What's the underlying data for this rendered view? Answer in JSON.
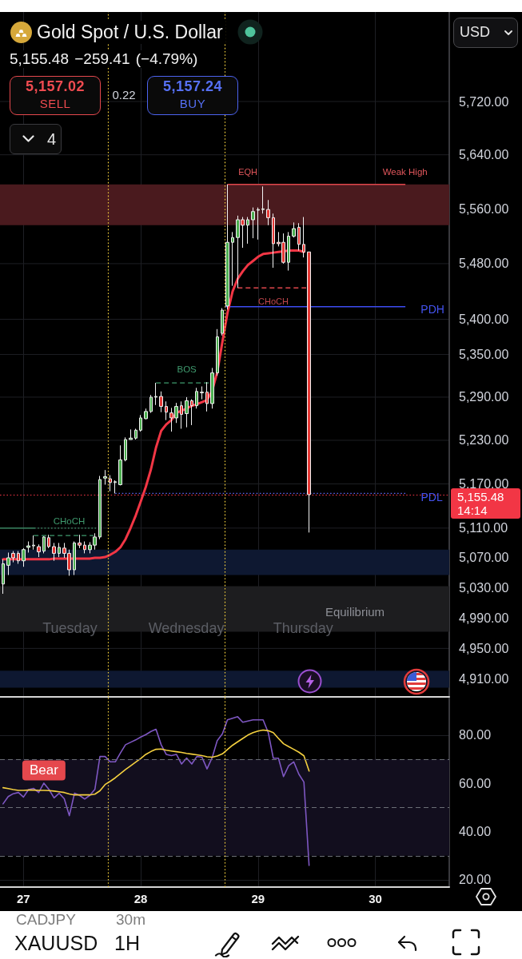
{
  "chart_data": [
    {
      "type": "candlestick",
      "title": "Gold Spot / U.S. Dollar",
      "subtitle": "5,155.48 −259.41 (−4.79%)",
      "x": [
        26.826,
        26.87,
        26.913,
        26.957,
        27,
        27.043,
        27.087,
        27.13,
        27.174,
        27.217,
        27.261,
        27.304,
        27.348,
        27.391,
        27.435,
        27.478,
        27.522,
        27.565,
        27.609,
        27.652,
        27.696,
        27.739,
        27.783,
        27.826,
        27.87,
        27.913,
        27.957,
        28,
        28.043,
        28.087,
        28.13,
        28.174,
        28.217,
        28.261,
        28.304,
        28.348,
        28.391,
        28.435,
        28.478,
        28.522,
        28.565,
        28.609,
        28.652,
        28.696,
        28.739,
        28.783,
        28.826,
        28.87,
        28.913,
        28.957,
        29,
        29.043,
        29.087,
        29.13,
        29.174,
        29.217,
        29.261,
        29.304,
        29.348,
        29.391,
        29.435
      ],
      "ohlc": [
        [
          5035,
          5068,
          5022,
          5062
        ],
        [
          5060,
          5077,
          5047,
          5070
        ],
        [
          5076,
          5079,
          5064,
          5070
        ],
        [
          5076,
          5079,
          5062,
          5066
        ],
        [
          5066,
          5083,
          5058,
          5081
        ],
        [
          5084,
          5092,
          5077,
          5086
        ],
        [
          5086,
          5100,
          5081,
          5087
        ],
        [
          5085,
          5088,
          5071,
          5078
        ],
        [
          5079,
          5099,
          5076,
          5098
        ],
        [
          5097,
          5101,
          5083,
          5085
        ],
        [
          5085,
          5090,
          5066,
          5076
        ],
        [
          5076,
          5090,
          5071,
          5084
        ],
        [
          5083,
          5090,
          5070,
          5076
        ],
        [
          5076,
          5081,
          5046,
          5054
        ],
        [
          5054,
          5092,
          5047,
          5090
        ],
        [
          5090,
          5101,
          5083,
          5087
        ],
        [
          5087,
          5092,
          5076,
          5081
        ],
        [
          5081,
          5091,
          5076,
          5087
        ],
        [
          5087,
          5103,
          5081,
          5098
        ],
        [
          5098,
          5181,
          5095,
          5176
        ],
        [
          5178,
          5189,
          5169,
          5180
        ],
        [
          5177,
          5182,
          5160,
          5172
        ],
        [
          5172,
          5175,
          5157,
          5173
        ],
        [
          5169,
          5223,
          5168,
          5203
        ],
        [
          5203,
          5234,
          5201,
          5231
        ],
        [
          5231,
          5245,
          5231,
          5233
        ],
        [
          5233,
          5246,
          5231,
          5244
        ],
        [
          5244,
          5265,
          5242,
          5261
        ],
        [
          5260,
          5274,
          5259,
          5270
        ],
        [
          5270,
          5293,
          5268,
          5290
        ],
        [
          5290,
          5310,
          5279,
          5291
        ],
        [
          5291,
          5298,
          5269,
          5277
        ],
        [
          5277,
          5284,
          5258,
          5269
        ],
        [
          5268,
          5275,
          5242,
          5261
        ],
        [
          5261,
          5282,
          5254,
          5277
        ],
        [
          5278,
          5284,
          5246,
          5266
        ],
        [
          5267,
          5290,
          5248,
          5285
        ],
        [
          5285,
          5287,
          5251,
          5278
        ],
        [
          5278,
          5303,
          5274,
          5298
        ],
        [
          5296,
          5305,
          5287,
          5297
        ],
        [
          5297,
          5311,
          5270,
          5281
        ],
        [
          5281,
          5331,
          5274,
          5324
        ],
        [
          5324,
          5386,
          5320,
          5375
        ],
        [
          5380,
          5416,
          5377,
          5413
        ],
        [
          5419,
          5596,
          5414,
          5511
        ],
        [
          5511,
          5526,
          5448,
          5518
        ],
        [
          5518,
          5550,
          5445,
          5544
        ],
        [
          5544,
          5548,
          5503,
          5536
        ],
        [
          5536,
          5548,
          5509,
          5544
        ],
        [
          5544,
          5562,
          5517,
          5556
        ],
        [
          5558,
          5562,
          5515,
          5559
        ],
        [
          5559,
          5593,
          5553,
          5560
        ],
        [
          5559,
          5573,
          5536,
          5547
        ],
        [
          5547,
          5553,
          5474,
          5509
        ],
        [
          5511,
          5526,
          5505,
          5509
        ],
        [
          5511,
          5524,
          5480,
          5482
        ],
        [
          5482,
          5526,
          5470,
          5520
        ],
        [
          5520,
          5540,
          5518,
          5531
        ],
        [
          5533,
          5539,
          5499,
          5508
        ],
        [
          5508,
          5548,
          5489,
          5497
        ],
        [
          5497,
          5497,
          5104,
          5155.48
        ]
      ],
      "colors": [
        "#4caf50",
        "#4caf50",
        "#e53935",
        "#e53935",
        "#4caf50",
        "#4caf50",
        "#4caf50",
        "#e53935",
        "#4caf50",
        "#e53935",
        "#e53935",
        "#4caf50",
        "#e53935",
        "#e53935",
        "#4caf50",
        "#e53935",
        "#e53935",
        "#4caf50",
        "#4caf50",
        "#4caf50",
        "#4caf50",
        "#e53935",
        "#4caf50",
        "#4caf50",
        "#4caf50",
        "#4caf50",
        "#4caf50",
        "#4caf50",
        "#4caf50",
        "#4caf50",
        "#4caf50",
        "#e53935",
        "#e53935",
        "#e53935",
        "#4caf50",
        "#e53935",
        "#4caf50",
        "#e53935",
        "#4caf50",
        "#4caf50",
        "#e53935",
        "#4caf50",
        "#4caf50",
        "#4caf50",
        "#4caf50",
        "#4caf50",
        "#4caf50",
        "#e53935",
        "#4caf50",
        "#4caf50",
        "#4caf50",
        "#4caf50",
        "#e53935",
        "#e53935",
        "#e53935",
        "#e53935",
        "#4caf50",
        "#4caf50",
        "#e53935",
        "#e53935",
        "#e53935"
      ],
      "series": [
        {
          "type": "line",
          "color": "#f23645",
          "line_style": "solid",
          "values": [
            5068,
            5068,
            5068,
            5068,
            5068,
            5068,
            5068,
            5068,
            5068,
            5068,
            5069,
            5069,
            5069,
            5069,
            5069,
            5069,
            5069,
            5069,
            5070,
            5070,
            5071,
            5074,
            5078,
            5084,
            5095,
            5110,
            5127,
            5146,
            5166,
            5190,
            5220,
            5243,
            5252,
            5258,
            5268,
            5271,
            5274,
            5278,
            5280,
            5283,
            5286,
            5299,
            5325,
            5368,
            5409,
            5440,
            5458,
            5469,
            5478,
            5484,
            5490,
            5494,
            5495,
            5496,
            5497,
            5498,
            5499,
            5499,
            5499,
            5497,
            null
          ]
        },
        {
          "type": "line",
          "x": [
            28.739,
            30.256
          ],
          "values": [
            5596,
            5596
          ],
          "color": "#e0474c",
          "line_style": "solid"
        },
        {
          "type": "line",
          "x": [
            28.72,
            30.256
          ],
          "values": [
            5418,
            5418
          ],
          "color": "#3d4cf2",
          "line_style": "solid"
        },
        {
          "type": "line",
          "x": [
            27.783,
            30.256
          ],
          "values": [
            5157,
            5157
          ],
          "color": "#5b63f0",
          "line_style": "dotted"
        },
        {
          "type": "line",
          "x": [
            28.826,
            29.41
          ],
          "values": [
            5445,
            5445
          ],
          "color": "#e0474c",
          "line_style": "dashed"
        },
        {
          "type": "line",
          "x": [
            28.13,
            28.593
          ],
          "values": [
            5310,
            5310
          ],
          "color": "#3f9a6e",
          "line_style": "dashed"
        },
        {
          "type": "line",
          "x": [
            26.8,
            27.093
          ],
          "values": [
            5110,
            5110
          ],
          "color": "#3f9a6e",
          "line_style": "solid"
        },
        {
          "type": "line",
          "x": [
            27.093,
            27.618
          ],
          "values": [
            5110,
            5110
          ],
          "color": "#3f9a6e",
          "line_style": "dotted"
        },
        {
          "type": "line",
          "x": [
            27.087,
            27.598
          ],
          "values": [
            5100,
            5100
          ],
          "color": "#3f9a6e",
          "line_style": "dashed"
        }
      ],
      "xlim": [
        26.8,
        30.63
      ],
      "xticks": [
        27,
        28,
        29,
        30
      ],
      "ylim": [
        4887,
        5857
      ],
      "yticks": [
        {
          "value": 5720,
          "label": "5,720.00"
        },
        {
          "value": 5640,
          "label": "5,640.00"
        },
        {
          "value": 5560,
          "label": "5,560.00"
        },
        {
          "value": 5480,
          "label": "5,480.00"
        },
        {
          "value": 5400,
          "label": "5,400.00"
        },
        {
          "value": 5350,
          "label": "5,350.00"
        },
        {
          "value": 5290,
          "label": "5,290.00"
        },
        {
          "value": 5230,
          "label": "5,230.00"
        },
        {
          "value": 5170,
          "label": "5,170.00"
        },
        {
          "value": 5110,
          "label": "5,110.00"
        },
        {
          "value": 5070,
          "label": "5,070.00"
        },
        {
          "value": 5030,
          "label": "5,030.00"
        },
        {
          "value": 4990,
          "label": "4,990.00"
        },
        {
          "value": 4950,
          "label": "4,950.00"
        },
        {
          "value": 4910,
          "label": "4,910.00"
        }
      ],
      "log": true,
      "grid": true,
      "tick_labels": "y",
      "marker": "none",
      "ref_lines": [
        {
          "axis": "y",
          "value": 5155.48,
          "label": "5,155.48\n14:14",
          "color": "#f23645",
          "line_style": "dotted"
        },
        {
          "axis": "x",
          "value": 27.72,
          "color": "#f4d03f",
          "line_style": "dotted"
        },
        {
          "axis": "x",
          "value": 28.72,
          "color": "#f4d03f",
          "line_style": "dotted"
        }
      ],
      "bands": [
        {
          "axis": "y",
          "from": 5536,
          "to": 5596,
          "color": "#4a1a1e"
        },
        {
          "axis": "y",
          "from": 5047,
          "to": 5081,
          "color": "#0e1831"
        },
        {
          "axis": "y",
          "from": 4972,
          "to": 5032,
          "color": "#1d1d1f",
          "label": "Equilibrium"
        },
        {
          "axis": "y",
          "from": 4899,
          "to": 4921,
          "color": "#0e1831"
        }
      ],
      "annotations": [
        {
          "text": "EQH",
          "x": 28.913,
          "y": 5596
        },
        {
          "text": "Weak High",
          "x": 30.253,
          "y": 5596
        },
        {
          "text": "PDH",
          "x": 30.256,
          "y": 5418
        },
        {
          "text": "CHoCH",
          "x": 29.131,
          "y": 5445
        },
        {
          "text": "BOS",
          "x": 28.392,
          "y": 5310
        },
        {
          "text": "PDL",
          "x": 30.256,
          "y": 5157
        },
        {
          "text": "CHoCH",
          "x": 27.39,
          "y": 5110
        },
        {
          "text": "Tuesday",
          "x": 27.396,
          "y": 4977
        },
        {
          "text": "Wednesday",
          "x": 28.388,
          "y": 4977
        },
        {
          "text": "Thursday",
          "x": 29.384,
          "y": 4977
        },
        "5,157.02",
        "SELL",
        "0.22",
        "5,157.24",
        "BUY",
        "4",
        "USD",
        "CADJPY",
        "30m",
        "XAUUSD",
        "1H"
      ]
    },
    {
      "type": "line",
      "x": [
        26.826,
        26.87,
        26.913,
        26.957,
        27,
        27.043,
        27.087,
        27.13,
        27.174,
        27.217,
        27.261,
        27.304,
        27.348,
        27.391,
        27.435,
        27.478,
        27.522,
        27.565,
        27.609,
        27.652,
        27.696,
        27.739,
        27.783,
        27.826,
        27.87,
        27.913,
        27.957,
        28,
        28.043,
        28.087,
        28.13,
        28.174,
        28.217,
        28.261,
        28.304,
        28.348,
        28.391,
        28.435,
        28.478,
        28.522,
        28.565,
        28.609,
        28.652,
        28.696,
        28.739,
        28.783,
        28.826,
        28.87,
        28.913,
        28.957,
        29,
        29.043,
        29.087,
        29.13,
        29.174,
        29.217,
        29.261,
        29.304,
        29.348,
        29.391,
        29.435
      ],
      "series": [
        {
          "color": "#7e57c2",
          "values": [
            51.5,
            54.5,
            55.7,
            56.2,
            54.3,
            57.4,
            57.9,
            56.2,
            60.1,
            57.5,
            54,
            55.9,
            53.6,
            46.6,
            55.9,
            55,
            53.5,
            55,
            57.5,
            71.1,
            71.1,
            68.9,
            68.9,
            72.5,
            76,
            77,
            78,
            79.2,
            80.2,
            81.5,
            82.4,
            76,
            72,
            71.5,
            72,
            68,
            70.5,
            68,
            71.1,
            70.8,
            66,
            70.7,
            77.7,
            80.5,
            86.3,
            87,
            87.6,
            85.3,
            85.8,
            86.3,
            86.3,
            86.3,
            81,
            70.4,
            70.4,
            62.8,
            67.3,
            68.9,
            63.8,
            60.5,
            26
          ]
        },
        {
          "color": "#f4d03f",
          "values": [
            58.2,
            57.8,
            57.4,
            57.1,
            57.1,
            57.2,
            57.2,
            57.1,
            57.1,
            57,
            56.8,
            56.5,
            56.2,
            55.6,
            55.2,
            55.2,
            55.2,
            55.2,
            55.5,
            56.9,
            59.5,
            60.8,
            62.3,
            64,
            65.7,
            67.2,
            68.8,
            70.3,
            72,
            73.2,
            74.1,
            74.2,
            73.7,
            73.4,
            73.1,
            72.8,
            72.4,
            72.1,
            71.8,
            71.5,
            71,
            70.8,
            71.3,
            72.2,
            74,
            75.8,
            77.2,
            78.6,
            80,
            81,
            81.7,
            82.1,
            81.8,
            81,
            78.6,
            76.4,
            75.2,
            74.1,
            72.9,
            71.4,
            65.1
          ]
        }
      ],
      "xlim": [
        26.8,
        30.63
      ],
      "xticks": [
        27,
        28,
        29,
        30
      ],
      "ylim": [
        17,
        95.5
      ],
      "yticks": [
        {
          "value": 80,
          "label": "80.00"
        },
        {
          "value": 60,
          "label": "60.00"
        },
        {
          "value": 40,
          "label": "40.00"
        },
        {
          "value": 20,
          "label": "20.00"
        }
      ],
      "grid": true,
      "marker": "none",
      "ref_lines": [
        {
          "axis": "y",
          "value": 70,
          "color": "#6b6e76",
          "line_style": "dashed"
        },
        {
          "axis": "y",
          "value": 50,
          "color": "#6b6e76",
          "line_style": "dashed"
        },
        {
          "axis": "y",
          "value": 30,
          "color": "#6b6e76",
          "line_style": "dashed"
        },
        {
          "axis": "x",
          "value": 27.72,
          "color": "#f4d03f",
          "line_style": "dotted"
        },
        {
          "axis": "x",
          "value": 28.72,
          "color": "#f4d03f",
          "line_style": "dotted"
        }
      ],
      "bands": [
        {
          "axis": "y",
          "from": 30,
          "to": 70,
          "color": "#120e1e"
        }
      ],
      "annotations": [
        {
          "text": "Bear",
          "x": 27.174,
          "y": 60.1
        }
      ]
    }
  ]
}
